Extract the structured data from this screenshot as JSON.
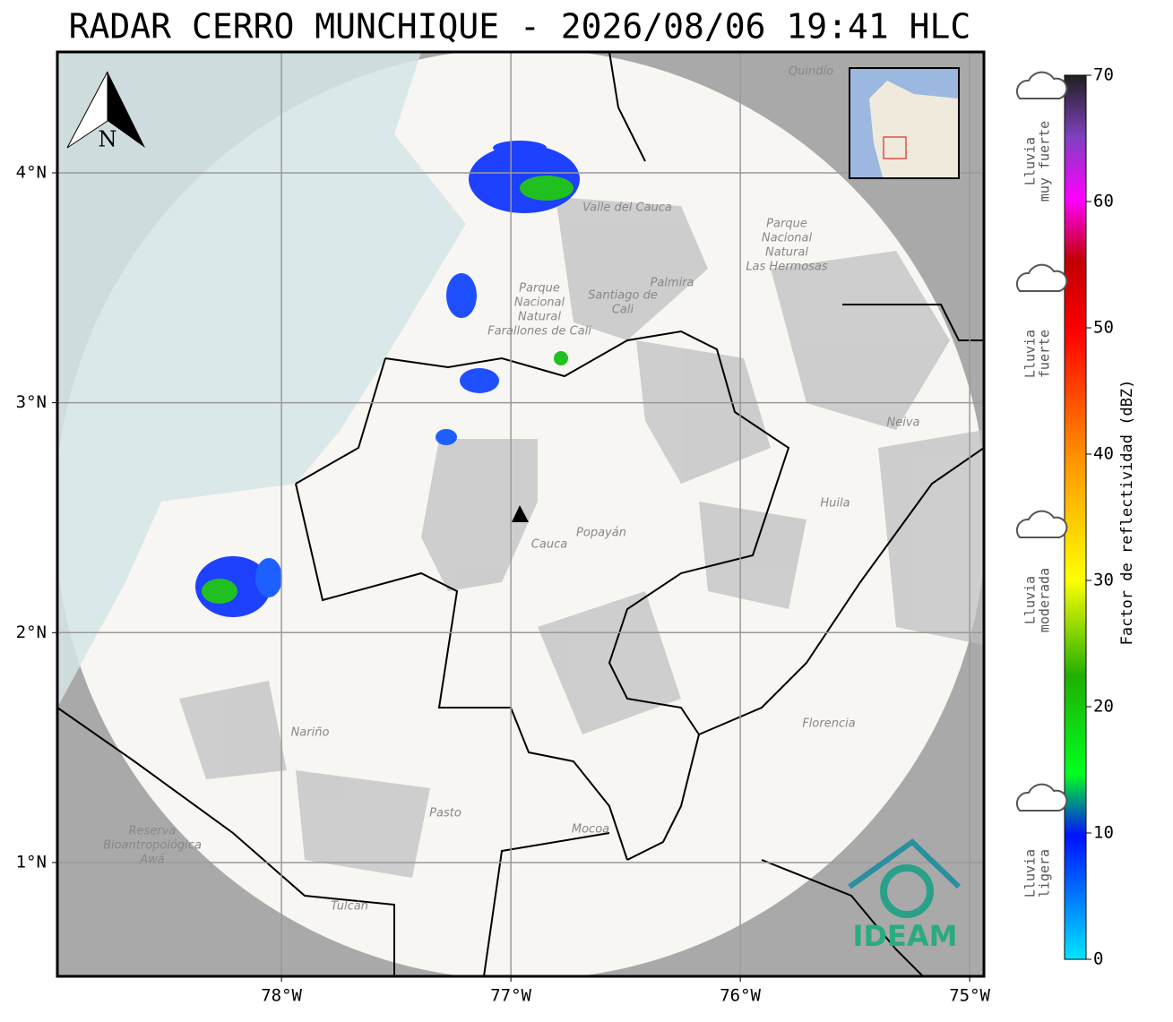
{
  "title": "RADAR CERRO MUNCHIQUE - 2026/08/06 19:41 HLC",
  "map": {
    "xlim": [
      -78.977,
      -74.938
    ],
    "ylim": [
      0.505,
      4.526
    ],
    "xticks": [
      {
        "value": -78,
        "label": "78°W"
      },
      {
        "value": -77,
        "label": "77°W"
      },
      {
        "value": -76,
        "label": "76°W"
      },
      {
        "value": -75,
        "label": "75°W"
      }
    ],
    "yticks": [
      {
        "value": 4,
        "label": "4°N"
      },
      {
        "value": 3,
        "label": "3°N"
      },
      {
        "value": 2,
        "label": "2°N"
      },
      {
        "value": 1,
        "label": "1°N"
      }
    ],
    "grid": true,
    "north": "N",
    "logo": "IDEAM",
    "places": [
      [
        "Quindío"
      ],
      [
        "Valle del Cauca"
      ],
      [
        "Parque",
        "Nacional",
        "Natural",
        "Las Hermosas"
      ],
      [
        "Parque",
        "Nacional",
        "Natural",
        "Farallones de Cali"
      ],
      [
        "Santiago de",
        "Cali"
      ],
      [
        "Palmira"
      ],
      [
        "Neiva"
      ],
      [
        "Huila"
      ],
      [
        "Cauca"
      ],
      [
        "Popayán"
      ],
      [
        "Nariño"
      ],
      [
        "Florencia"
      ],
      [
        "Pasto"
      ],
      [
        "Mocoa"
      ],
      [
        "Tulcán"
      ],
      [
        "Reserva",
        "Bioantropológica",
        "Awá"
      ]
    ]
  },
  "colorbar": {
    "label": "Factor de reflectividad (dBZ)",
    "clim": [
      0,
      70
    ],
    "ticks": [
      0,
      10,
      20,
      30,
      40,
      50,
      60,
      70
    ]
  },
  "rain_legend": [
    [
      "Lluvia",
      "muy fuerte"
    ],
    [
      "Lluvia",
      "fuerte"
    ],
    [
      "Lluvia",
      "moderada"
    ],
    [
      "Lluvia",
      "ligera"
    ]
  ]
}
